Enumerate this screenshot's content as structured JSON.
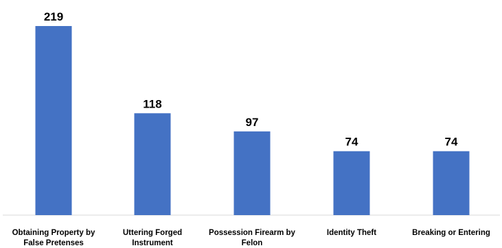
{
  "chart_data": {
    "type": "bar",
    "categories": [
      [
        "Obtaining Property by",
        "False Pretenses"
      ],
      [
        "Uttering Forged",
        "Instrument"
      ],
      [
        "Possession Firearm by",
        "Felon"
      ],
      [
        "Identity Theft"
      ],
      [
        "Breaking or Entering"
      ]
    ],
    "values": [
      219,
      118,
      97,
      74,
      74
    ],
    "data_labels": [
      "219",
      "118",
      "97",
      "74",
      "74"
    ],
    "bar_color": "#4472C4",
    "title": "",
    "xlabel": "",
    "ylabel": "",
    "ylim": [
      0,
      219
    ],
    "grid": false,
    "legend": "none"
  }
}
